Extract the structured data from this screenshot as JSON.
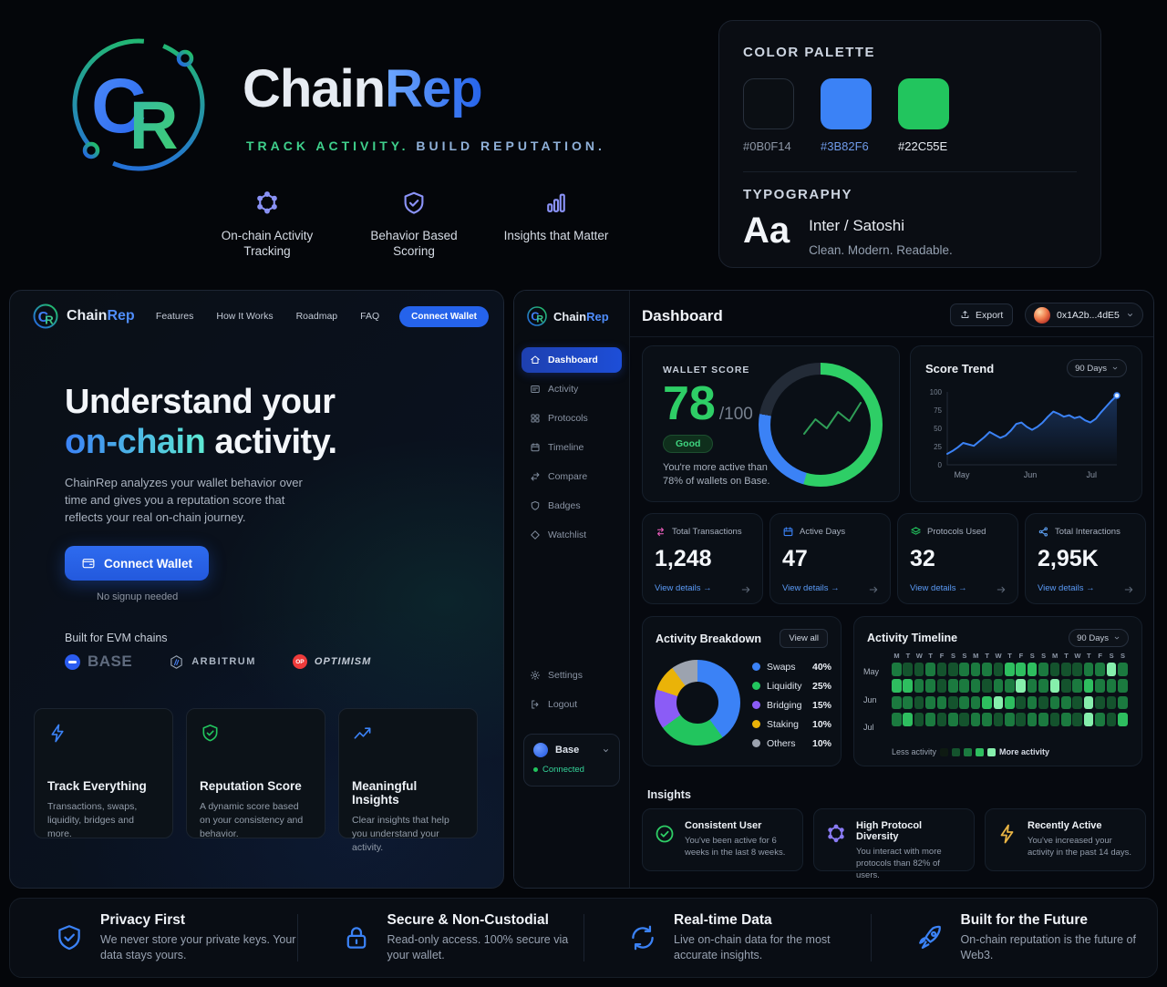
{
  "brand": {
    "name_a": "Chain",
    "name_b": "Rep",
    "tagline_a": "TRACK ACTIVITY.",
    "tagline_b": "BUILD REPUTATION.",
    "pillars": [
      {
        "icon": "hexnode",
        "label": "On-chain Activity Tracking"
      },
      {
        "icon": "shield-check",
        "label": "Behavior Based Scoring"
      },
      {
        "icon": "bars",
        "label": "Insights that Matter"
      }
    ]
  },
  "style_guide": {
    "palette_title": "COLOR PALETTE",
    "swatches": [
      {
        "hex": "#0B0F14",
        "fill": "#0B0F14",
        "label_color": "#8d97a6",
        "bordered": true
      },
      {
        "hex": "#3B82F6",
        "fill": "#3B82F6",
        "label_color": "#6f9bea",
        "bordered": false
      },
      {
        "hex": "#22C55E",
        "fill": "#22C55E",
        "label_color": "#e8edf3",
        "bordered": false
      }
    ],
    "typography_title": "TYPOGRAPHY",
    "specimen": "Aa",
    "font_name": "Inter / Satoshi",
    "font_note": "Clean. Modern. Readable."
  },
  "landing": {
    "nav_brand_a": "Chain",
    "nav_brand_b": "Rep",
    "nav_links": [
      "Features",
      "How It Works",
      "Roadmap",
      "FAQ"
    ],
    "nav_cta": "Connect Wallet",
    "hero_line1": "Understand your",
    "hero_accent": "on-chain",
    "hero_line2_rest": " activity.",
    "description": "ChainRep analyzes your wallet behavior over time and gives you a reputation score that reflects your real on-chain journey.",
    "cta": "Connect Wallet",
    "cta_note": "No signup needed",
    "chains_label": "Built for EVM chains",
    "chains": [
      {
        "id": "base",
        "label": "BASE"
      },
      {
        "id": "arbitrum",
        "label": "ARBITRUM"
      },
      {
        "id": "optimism",
        "label": "OPTIMISM",
        "badge": "OP"
      }
    ],
    "cards": [
      {
        "icon": "bolt",
        "color": "#3b82f6",
        "title": "Track Everything",
        "desc": "Transactions, swaps, liquidity, bridges and more."
      },
      {
        "icon": "shield-check",
        "color": "#22c55e",
        "title": "Reputation Score",
        "desc": "A dynamic score based on your consistency and behavior."
      },
      {
        "icon": "trend-up",
        "color": "#3b82f6",
        "title": "Meaningful Insights",
        "desc": "Clear insights that help you understand your activity."
      }
    ]
  },
  "dashboard": {
    "sidebar": {
      "brand_a": "Chain",
      "brand_b": "Rep",
      "items": [
        {
          "icon": "home",
          "label": "Dashboard",
          "active": true
        },
        {
          "icon": "activity",
          "label": "Activity",
          "active": false
        },
        {
          "icon": "grid",
          "label": "Protocols",
          "active": false
        },
        {
          "icon": "calendar",
          "label": "Timeline",
          "active": false
        },
        {
          "icon": "compare",
          "label": "Compare",
          "active": false
        },
        {
          "icon": "shield",
          "label": "Badges",
          "active": false
        },
        {
          "icon": "diamond",
          "label": "Watchlist",
          "active": false
        }
      ],
      "footer_items": [
        {
          "icon": "gear",
          "label": "Settings"
        },
        {
          "icon": "logout",
          "label": "Logout"
        }
      ],
      "chain_name": "Base",
      "connection_status": "Connected"
    },
    "header": {
      "title": "Dashboard",
      "export_label": "Export",
      "wallet_address": "0x1A2b...4dE5"
    },
    "wallet_score": {
      "label": "WALLET SCORE",
      "score": "78",
      "max": "/100",
      "badge": "Good",
      "note_line1": "You're more active than",
      "note_line2": "78% of wallets on Base."
    },
    "score_trend": {
      "title": "Score Trend",
      "range": "90 Days"
    },
    "stats": [
      {
        "icon": "swap",
        "color": "#e05ab4",
        "label": "Total Transactions",
        "value": "1,248",
        "link": "View details →"
      },
      {
        "icon": "calendar",
        "color": "#3b82f6",
        "label": "Active Days",
        "value": "47",
        "link": "View details →"
      },
      {
        "icon": "layers",
        "color": "#22c55e",
        "label": "Protocols Used",
        "value": "32",
        "link": "View details →"
      },
      {
        "icon": "share-nodes",
        "color": "#60a5fa",
        "label": "Total Interactions",
        "value": "2,95K",
        "link": "View details →"
      }
    ],
    "breakdown": {
      "title": "Activity Breakdown",
      "button": "View all"
    },
    "timeline": {
      "title": "Activity Timeline",
      "range": "90 Days",
      "legend_low": "Less activity",
      "legend_high": "More activity"
    },
    "insights": {
      "title": "Insights",
      "cards": [
        {
          "icon": "check-circle",
          "color": "#2ece66",
          "title": "Consistent User",
          "desc": "You've been active for 6 weeks in the last 8 weeks."
        },
        {
          "icon": "hexnode",
          "color": "#8b7cf6",
          "title": "High Protocol Diversity",
          "desc": "You interact with more protocols than 82% of users."
        },
        {
          "icon": "bolt",
          "color": "#eab544",
          "title": "Recently Active",
          "desc": "You've increased your activity in the past 14 days."
        }
      ]
    }
  },
  "footer": {
    "items": [
      {
        "icon": "shield-check",
        "title": "Privacy First",
        "desc": "We never store your private keys. Your data stays yours."
      },
      {
        "icon": "lock",
        "title": "Secure & Non-Custodial",
        "desc": "Read-only access. 100% secure via your wallet."
      },
      {
        "icon": "refresh",
        "title": "Real-time Data",
        "desc": "Live on-chain data for the most accurate insights."
      },
      {
        "icon": "rocket",
        "title": "Built for the Future",
        "desc": "On-chain reputation is the future of Web3."
      }
    ],
    "icon_color": "#3b82f6"
  },
  "chart_data": [
    {
      "id": "score_trend",
      "type": "line",
      "title": "Score Trend",
      "range_selector": "90 Days",
      "line_color": "#3B82F6",
      "ylim": [
        0,
        100
      ],
      "y_ticks": [
        100,
        75,
        50,
        25,
        0
      ],
      "x_ticks": [
        {
          "label": "May",
          "pos": 0.04
        },
        {
          "label": "Jun",
          "pos": 0.45
        },
        {
          "label": "Jul",
          "pos": 0.82
        }
      ],
      "values": [
        15,
        19,
        24,
        30,
        28,
        26,
        32,
        38,
        45,
        41,
        37,
        40,
        47,
        56,
        58,
        52,
        48,
        52,
        58,
        66,
        73,
        70,
        66,
        68,
        64,
        66,
        61,
        58,
        63,
        72,
        80,
        88,
        95
      ]
    },
    {
      "id": "wallet_score_ring",
      "type": "donut",
      "score": 78,
      "max": 100,
      "segments": [
        {
          "name": "high-activity",
          "color": "#2ece66",
          "deg": 196
        },
        {
          "name": "medium-activity",
          "color": "#3B82F6",
          "deg": 84
        },
        {
          "name": "remaining",
          "color": "#232b37",
          "deg": 80
        }
      ],
      "sparkline": [
        38,
        22,
        32,
        14,
        24,
        4
      ],
      "sparkline_color": "#2f9e57"
    },
    {
      "id": "activity_breakdown",
      "type": "pie",
      "slices": [
        {
          "label": "Swaps",
          "value": 40,
          "pct": "40%",
          "color": "#3B82F6"
        },
        {
          "label": "Liquidity",
          "value": 25,
          "pct": "25%",
          "color": "#22C55E"
        },
        {
          "label": "Bridging",
          "value": 15,
          "pct": "15%",
          "color": "#8B5CF6"
        },
        {
          "label": "Staking",
          "value": 10,
          "pct": "10%",
          "color": "#EAB308"
        },
        {
          "label": "Others",
          "value": 10,
          "pct": "10%",
          "color": "#9CA3AF"
        }
      ]
    },
    {
      "id": "activity_heatmap",
      "type": "heatmap",
      "weekdays": [
        "M",
        "T",
        "W",
        "T",
        "F",
        "S",
        "S"
      ],
      "row_labels": [
        "May",
        "Jun",
        "Jul"
      ],
      "levels": [
        "#0e1a12",
        "#14532d",
        "#1b7a3f",
        "#2ebe5f",
        "#86efac"
      ],
      "grid": [
        [
          3,
          2,
          2,
          3,
          2,
          2,
          3,
          3,
          3,
          2,
          4,
          4,
          4,
          3,
          2,
          2,
          2,
          3,
          3,
          5,
          3
        ],
        [
          4,
          4,
          3,
          3,
          2,
          3,
          3,
          3,
          2,
          3,
          3,
          5,
          3,
          3,
          5,
          2,
          3,
          4,
          3,
          3,
          3
        ],
        [
          3,
          3,
          2,
          3,
          3,
          2,
          3,
          3,
          4,
          5,
          4,
          2,
          3,
          2,
          3,
          3,
          2,
          5,
          2,
          2,
          3
        ],
        [
          3,
          4,
          2,
          3,
          2,
          3,
          2,
          3,
          3,
          2,
          3,
          2,
          3,
          3,
          2,
          3,
          2,
          5,
          3,
          2,
          4
        ]
      ]
    }
  ]
}
